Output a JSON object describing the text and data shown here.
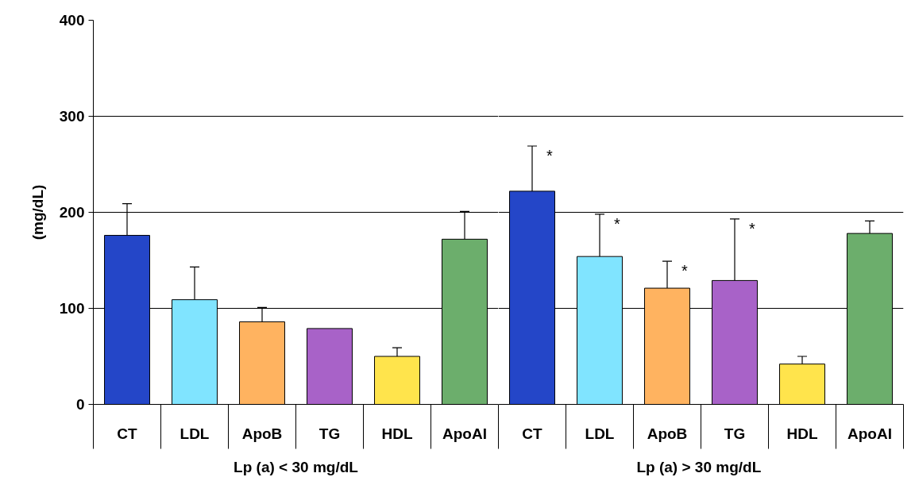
{
  "chart_data": [
    {
      "type": "bar",
      "categories": [
        "CT",
        "LDL",
        "ApoB",
        "TG",
        "HDL",
        "ApoAI"
      ],
      "values": [
        176,
        109,
        86,
        79,
        50,
        172
      ],
      "colors": [
        "#2446c8",
        "#80e4ff",
        "#ffb360",
        "#a862c8",
        "#ffe44c",
        "#6cae6c"
      ],
      "errors": [
        [
          176,
          209
        ],
        [
          109,
          143
        ],
        [
          86,
          101
        ],
        null,
        [
          50,
          59
        ],
        [
          172,
          201
        ]
      ],
      "xlabel": "Lp (a) < 30 mg/dL",
      "ylabel": "(mg/dL)",
      "ylim": [
        0,
        400
      ],
      "yticks": [
        0,
        100,
        200,
        300,
        400
      ],
      "grid": "y"
    },
    {
      "type": "bar",
      "categories": [
        "CT",
        "LDL",
        "ApoB",
        "TG",
        "HDL",
        "ApoAI"
      ],
      "values": [
        222,
        154,
        121,
        129,
        42,
        178
      ],
      "colors": [
        "#2446c8",
        "#80e4ff",
        "#ffb360",
        "#a862c8",
        "#ffe44c",
        "#6cae6c"
      ],
      "errors": [
        [
          222,
          269
        ],
        [
          154,
          198
        ],
        [
          121,
          149
        ],
        [
          129,
          193
        ],
        [
          42,
          50
        ],
        [
          178,
          191
        ]
      ],
      "xlabel": "Lp (a) > 30  mg/dL",
      "ylim": [
        0,
        400
      ],
      "yticks": [
        0,
        100,
        200,
        300,
        400
      ],
      "grid": "y",
      "tick_labels": "x",
      "annotations": [
        {
          "text": "*",
          "x": "CT",
          "y": 269
        },
        {
          "text": "*",
          "x": "LDL",
          "y": 198
        },
        {
          "text": "*",
          "x": "ApoB",
          "y": 149
        },
        {
          "text": "*",
          "x": "TG",
          "y": 193
        }
      ]
    }
  ]
}
